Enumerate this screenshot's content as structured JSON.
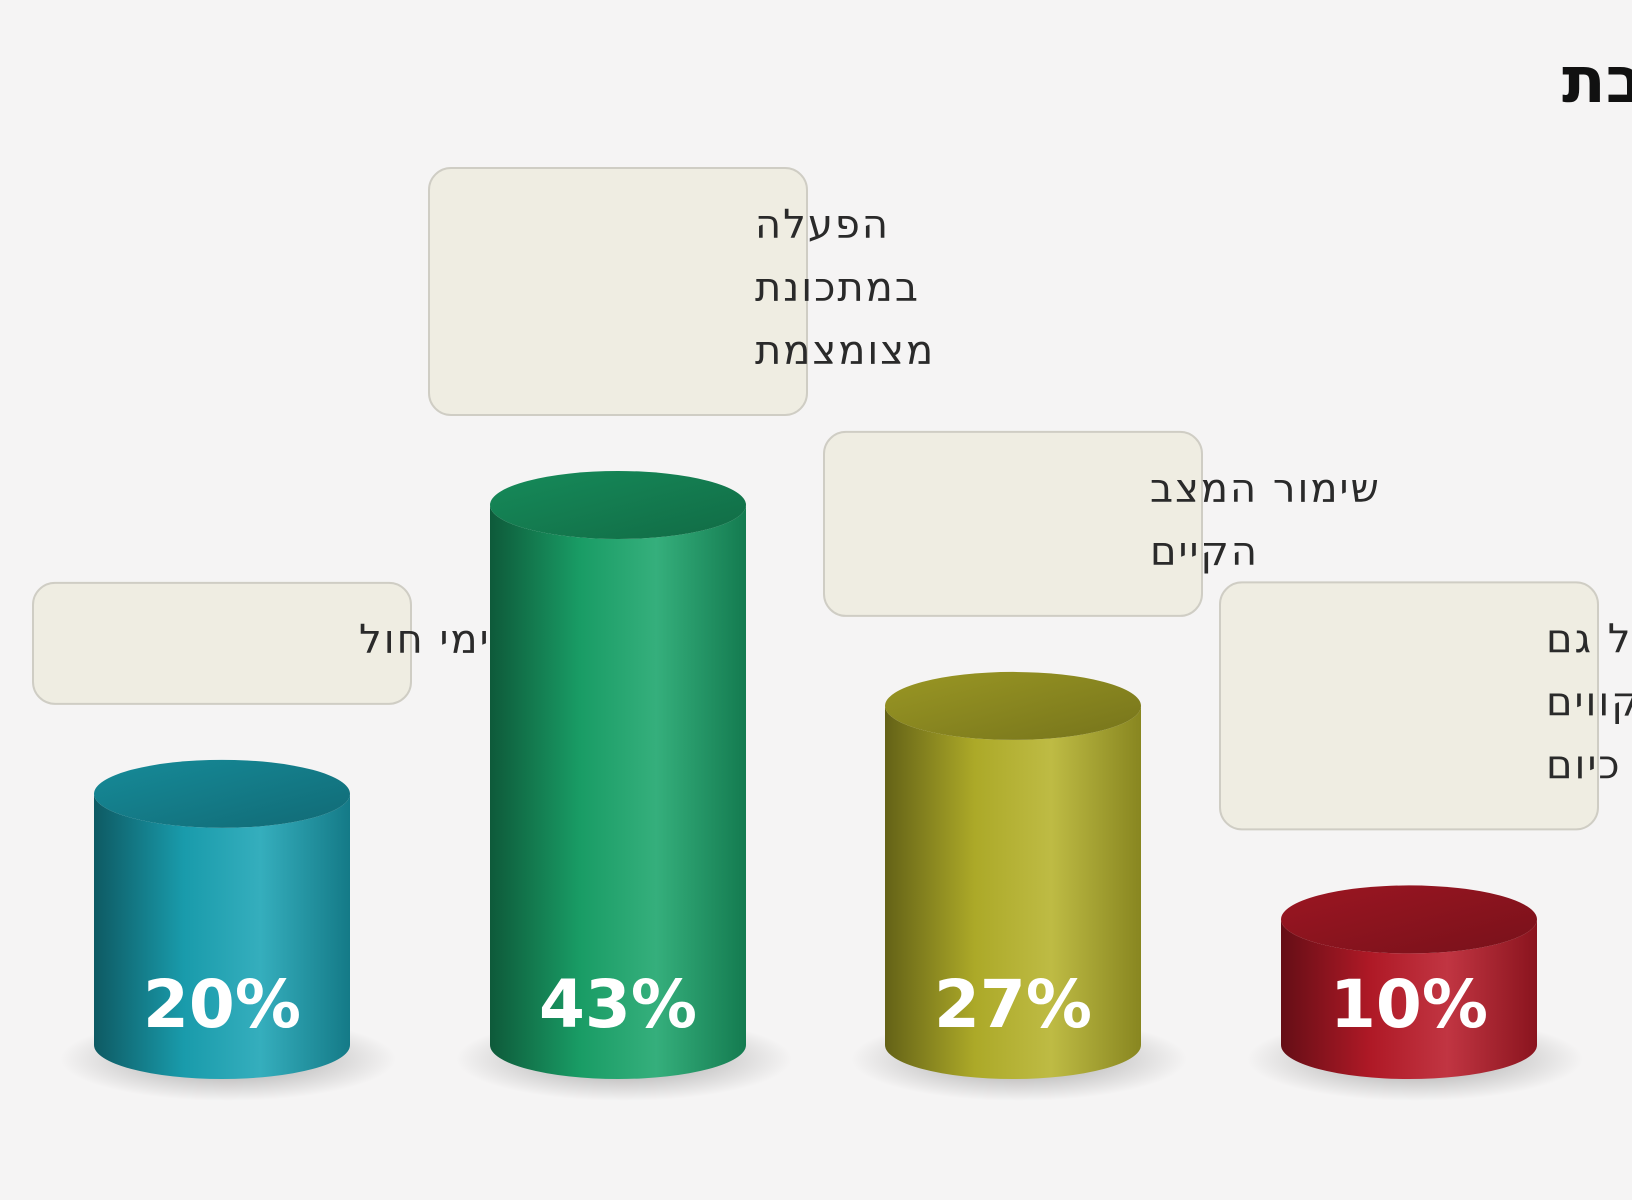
{
  "chart_data": {
    "type": "bar",
    "title": "תחבורה ציבורית בשבת",
    "categories": [
      "כמו בימי חול",
      "הפעלה במתכונת מצומצמת",
      "שימור המצב הקיים",
      "לבטל גם את הקווים הקיימים כיום"
    ],
    "category_lines": [
      [
        "כמו בימי חול"
      ],
      [
        "הפעלה",
        "במתכונת",
        "מצומצמת"
      ],
      [
        "שימור המצב",
        "הקיים"
      ],
      [
        "לבטל גם",
        "את הקווים",
        "הקיימים כיום"
      ]
    ],
    "values": [
      20,
      43,
      27,
      10
    ],
    "value_labels": [
      "20%",
      "43%",
      "27%",
      "10%"
    ],
    "unit": "%",
    "ylim": [
      0,
      43
    ],
    "grid": false,
    "bar_style": "3d-cylinder",
    "colors": [
      "#1aa3b4",
      "#1aa46a",
      "#b5b22a",
      "#b81a28"
    ]
  }
}
